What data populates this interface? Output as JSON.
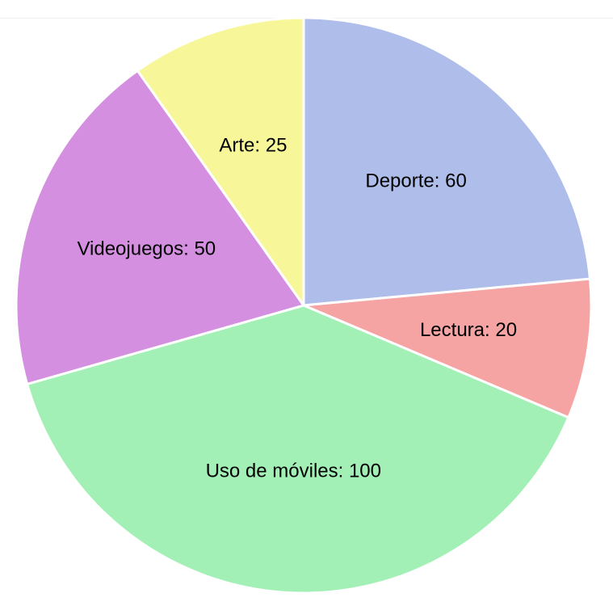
{
  "chart_data": {
    "type": "pie",
    "title": "",
    "start_angle": "12 o'clock",
    "direction": "clockwise",
    "label_format": "{category}: {value}",
    "slices": [
      {
        "category": "Deporte",
        "value": 60,
        "color": "#aebdea"
      },
      {
        "category": "Lectura",
        "value": 20,
        "color": "#f5a3a3"
      },
      {
        "category": "Uso de móviles",
        "value": 100,
        "color": "#a2f0b5"
      },
      {
        "category": "Videojuegos",
        "value": 50,
        "color": "#d48fe0"
      },
      {
        "category": "Arte",
        "value": 25,
        "color": "#f7f79a"
      }
    ]
  }
}
